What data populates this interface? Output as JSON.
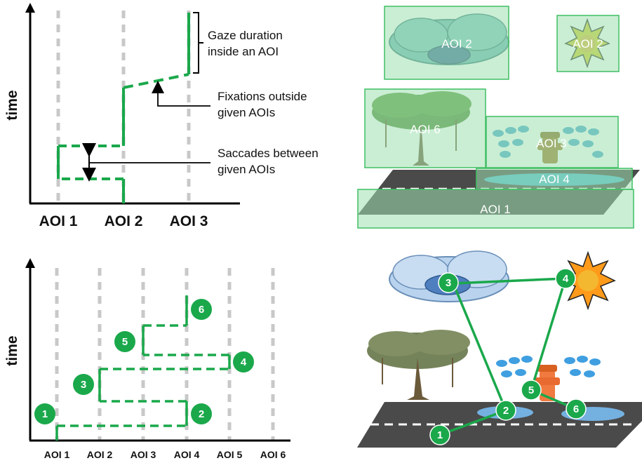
{
  "top_chart": {
    "y_label": "time",
    "x_labels": [
      "AOI 1",
      "AOI 2",
      "AOI 3"
    ],
    "annotations": {
      "gaze_line1": "Gaze duration",
      "gaze_line2": "inside an AOI",
      "fix_line1": "Fixations outside",
      "fix_line2": "given AOIs",
      "sac_line1": "Saccades between",
      "sac_line2": "given AOIs"
    }
  },
  "bottom_chart": {
    "y_label": "time",
    "x_labels": [
      "AOI 1",
      "AOI 2",
      "AOI 3",
      "AOI 4",
      "AOI 5",
      "AOI 6"
    ],
    "fixations": [
      "1",
      "2",
      "3",
      "4",
      "5",
      "6"
    ]
  },
  "top_scene": {
    "aoi_labels": {
      "cloud": "AOI 2",
      "sun": "AOI 2",
      "tree": "AOI 6",
      "hydrant": "AOI 3",
      "puddle": "AOI 4",
      "road": "AOI 1"
    }
  },
  "bottom_scene": {
    "scanpath_nodes": [
      "1",
      "2",
      "3",
      "4",
      "5",
      "6"
    ]
  },
  "colors": {
    "green": "#1aa84b",
    "aoi_fill": "#9fe0b0",
    "aoi_stroke": "#3fbf63",
    "road": "#4a4a4a"
  }
}
